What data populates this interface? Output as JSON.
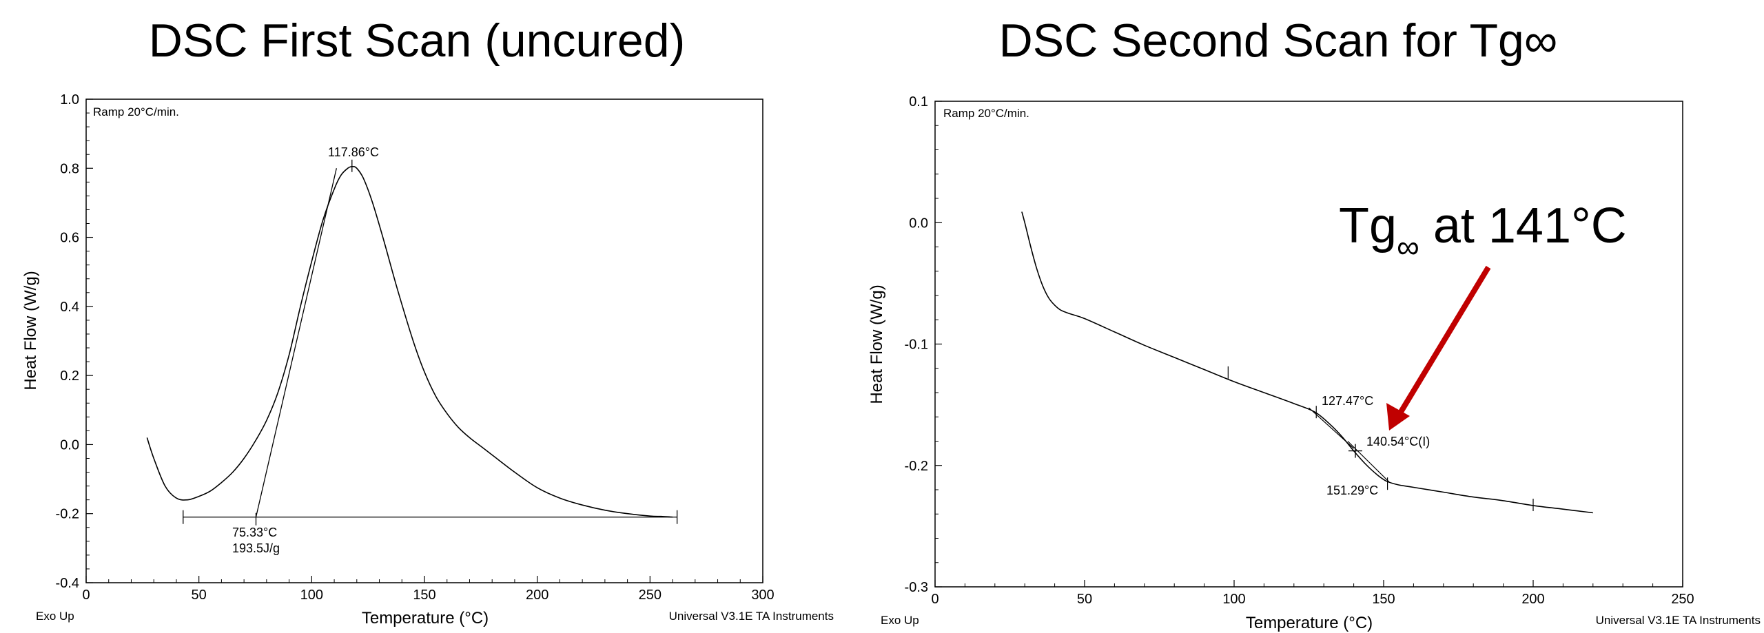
{
  "charts": [
    {
      "title": "DSC First Scan (uncured)",
      "ramp_label": "Ramp 20°C/min.",
      "exo_label": "Exo Up",
      "instrument_label": "Universal V3.1E TA Instruments",
      "annotations": {
        "peak": "117.86°C",
        "onset": "75.33°C",
        "enthalpy": "193.5J/g"
      }
    },
    {
      "title": "DSC Second Scan for Tg∞",
      "ramp_label": "Ramp 20°C/min.",
      "exo_label": "Exo Up",
      "instrument_label": "Universal V3.1E TA Instruments",
      "annotations": {
        "onset": "127.47°C",
        "inflection": "140.54°C(I)",
        "end": "151.29°C",
        "callout_main": "Tg",
        "callout_sub": "∞",
        "callout_rest": " at 141°C"
      }
    }
  ],
  "chart_data": [
    {
      "type": "line",
      "title": "DSC First Scan (uncured)",
      "xlabel": "Temperature (°C)",
      "ylabel": "Heat Flow (W/g)",
      "xlim": [
        0,
        300
      ],
      "ylim": [
        -0.4,
        1.0
      ],
      "xticks": [
        0,
        50,
        100,
        150,
        200,
        250,
        300
      ],
      "yticks": [
        -0.4,
        -0.2,
        0.0,
        0.2,
        0.4,
        0.6,
        0.8,
        1.0
      ],
      "tick_labels_x": [
        "0",
        "50",
        "100",
        "150",
        "200",
        "250",
        "300"
      ],
      "tick_labels_y": [
        "-0.4",
        "-0.2",
        "0.0",
        "0.2",
        "0.4",
        "0.6",
        "0.8",
        "1.0"
      ],
      "series": [
        {
          "x": [
            27,
            30,
            35,
            40,
            45,
            50,
            55,
            60,
            65,
            70,
            75,
            80,
            85,
            90,
            95,
            100,
            105,
            110,
            113,
            116,
            118,
            120,
            123,
            127,
            132,
            138,
            145,
            150,
            155,
            160,
            165,
            170,
            175,
            180,
            190,
            200,
            210,
            220,
            230,
            240,
            250,
            255,
            260
          ],
          "y": [
            0.02,
            -0.04,
            -0.12,
            -0.155,
            -0.16,
            -0.15,
            -0.135,
            -0.11,
            -0.08,
            -0.04,
            0.01,
            0.07,
            0.15,
            0.26,
            0.4,
            0.53,
            0.65,
            0.74,
            0.78,
            0.8,
            0.805,
            0.8,
            0.77,
            0.7,
            0.59,
            0.45,
            0.3,
            0.21,
            0.14,
            0.09,
            0.05,
            0.02,
            -0.005,
            -0.03,
            -0.08,
            -0.125,
            -0.155,
            -0.175,
            -0.19,
            -0.2,
            -0.207,
            -0.208,
            -0.21
          ]
        }
      ],
      "baseline": {
        "x": [
          43,
          262
        ],
        "y": [
          -0.21,
          -0.21
        ]
      },
      "tangent": {
        "x": [
          75.3,
          111
        ],
        "y": [
          -0.21,
          0.8
        ]
      }
    },
    {
      "type": "line",
      "title": "DSC Second Scan for Tg∞",
      "xlabel": "Temperature (°C)",
      "ylabel": "Heat Flow (W/g)",
      "xlim": [
        0,
        250
      ],
      "ylim": [
        -0.3,
        0.1
      ],
      "xticks": [
        0,
        50,
        100,
        150,
        200,
        250
      ],
      "yticks": [
        -0.3,
        -0.2,
        -0.1,
        0.0,
        0.1
      ],
      "tick_labels_x": [
        "0",
        "50",
        "100",
        "150",
        "200",
        "250"
      ],
      "tick_labels_y": [
        "-0.3",
        "-0.2",
        "-0.1",
        "0.0",
        "0.1"
      ],
      "series": [
        {
          "x": [
            29,
            30,
            32,
            34,
            36,
            38,
            40,
            42,
            45,
            50,
            60,
            70,
            80,
            90,
            100,
            110,
            120,
            127,
            132,
            136,
            140,
            144,
            148,
            151,
            155,
            160,
            170,
            180,
            190,
            200,
            210,
            220
          ],
          "y": [
            0.009,
            0.0,
            -0.02,
            -0.038,
            -0.052,
            -0.062,
            -0.068,
            -0.072,
            -0.075,
            -0.079,
            -0.09,
            -0.101,
            -0.111,
            -0.121,
            -0.131,
            -0.14,
            -0.149,
            -0.156,
            -0.166,
            -0.176,
            -0.188,
            -0.199,
            -0.208,
            -0.213,
            -0.216,
            -0.218,
            -0.222,
            -0.226,
            -0.229,
            -0.233,
            -0.236,
            -0.239
          ]
        }
      ],
      "callout_arrow_color": "#c00000"
    }
  ]
}
